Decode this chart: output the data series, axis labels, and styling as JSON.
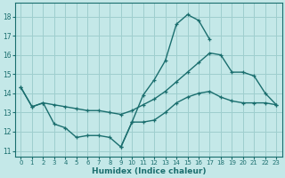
{
  "xlabel": "Humidex (Indice chaleur)",
  "bg_color": "#c4e8e8",
  "line_color": "#1a6e6e",
  "grid_color": "#9ecece",
  "xlim": [
    -0.5,
    23.5
  ],
  "ylim": [
    10.7,
    18.7
  ],
  "yticks": [
    11,
    12,
    13,
    14,
    15,
    16,
    17,
    18
  ],
  "xticks": [
    0,
    1,
    2,
    3,
    4,
    5,
    6,
    7,
    8,
    9,
    10,
    11,
    12,
    13,
    14,
    15,
    16,
    17,
    18,
    19,
    20,
    21,
    22,
    23
  ],
  "curve1_x": [
    0,
    1,
    2,
    3,
    4,
    5,
    6,
    7,
    8,
    9,
    10,
    11,
    12,
    13,
    14,
    15,
    16,
    17
  ],
  "curve1_y": [
    14.3,
    13.3,
    13.5,
    12.4,
    12.2,
    11.7,
    11.8,
    11.8,
    11.7,
    11.2,
    12.5,
    13.9,
    14.7,
    15.7,
    17.6,
    18.1,
    17.8,
    16.8
  ],
  "curve2_x": [
    0,
    1,
    2,
    3,
    4,
    5,
    6,
    7,
    8,
    9,
    10,
    11,
    12,
    13,
    14,
    15,
    16,
    17,
    18,
    19,
    20,
    21,
    22,
    23
  ],
  "curve2_y": [
    14.3,
    13.3,
    13.5,
    13.4,
    13.3,
    13.2,
    13.1,
    13.1,
    13.0,
    12.9,
    13.1,
    13.4,
    13.7,
    14.1,
    14.6,
    15.1,
    15.6,
    16.1,
    16.0,
    15.1,
    15.1,
    14.9,
    14.0,
    13.4
  ],
  "curve3_x": [
    9,
    10,
    11,
    12,
    13,
    14,
    15,
    16,
    17,
    18,
    19,
    20,
    21,
    22,
    23
  ],
  "curve3_y": [
    11.2,
    12.5,
    12.5,
    12.6,
    13.0,
    13.5,
    13.8,
    14.0,
    14.1,
    13.8,
    13.6,
    13.5,
    13.5,
    13.5,
    13.4
  ]
}
